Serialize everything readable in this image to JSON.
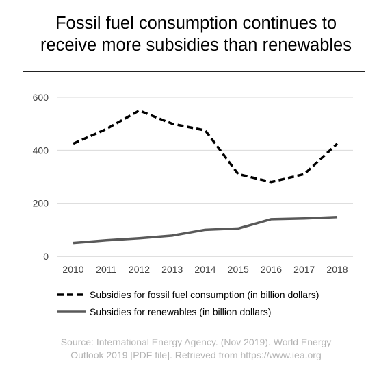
{
  "title_line1": "Fossil fuel consumption continues to",
  "title_line2": "receive more subsidies than renewables",
  "source_line1": "Source: International Energy Agency. (Nov 2019). World Energy",
  "source_line2": "Outlook 2019 [PDF file]. Retrieved from https://www.iea.org",
  "chart_data": {
    "type": "line",
    "x": [
      "2010",
      "2011",
      "2012",
      "2013",
      "2014",
      "2015",
      "2016",
      "2017",
      "2018"
    ],
    "ylim": [
      0,
      600
    ],
    "yticks": [
      0,
      200,
      400,
      600
    ],
    "grid": true,
    "legend_placement": "bottom",
    "series": [
      {
        "name": "Subsidies for fossil fuel consumption (in billion dollars)",
        "values": [
          425,
          480,
          550,
          500,
          475,
          310,
          280,
          310,
          425
        ],
        "color": "#000000",
        "style": "dashed"
      },
      {
        "name": "Subsidies for renewables (in billion dollars)",
        "values": [
          50,
          60,
          68,
          78,
          100,
          105,
          140,
          143,
          148
        ],
        "color": "#595959",
        "style": "solid"
      }
    ]
  }
}
